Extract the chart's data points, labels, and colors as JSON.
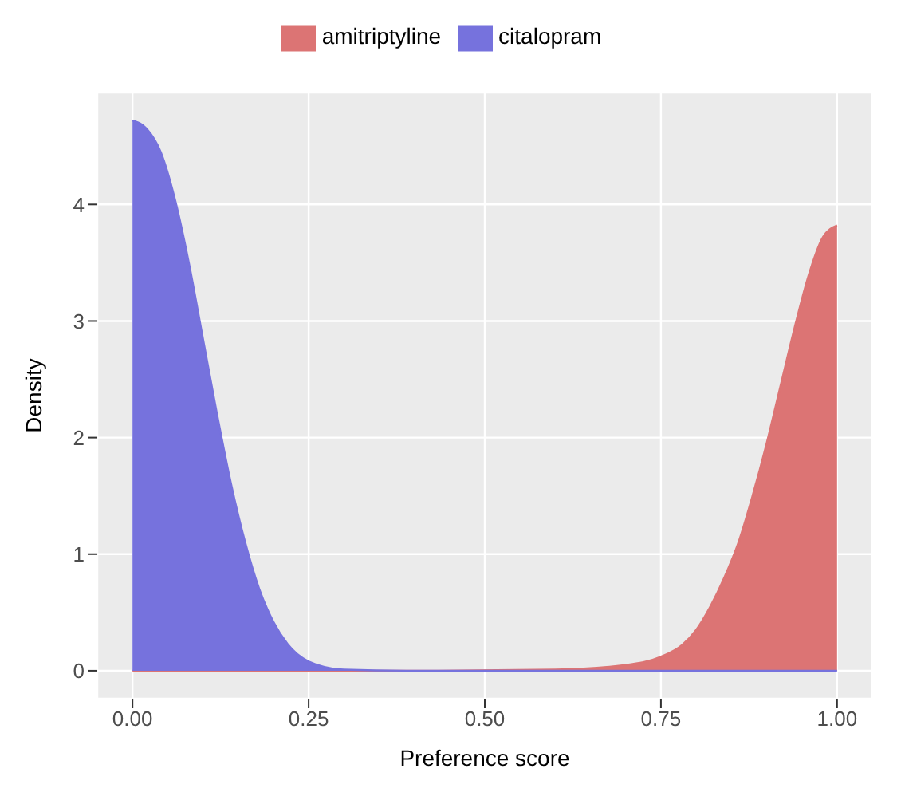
{
  "chart_data": {
    "type": "area",
    "xlabel": "Preference score",
    "ylabel": "Density",
    "xlim": [
      -0.05,
      1.05
    ],
    "ylim": [
      -0.24,
      4.96
    ],
    "xticks": [
      {
        "value": 0,
        "label": "0.00"
      },
      {
        "value": 0.25,
        "label": "0.25"
      },
      {
        "value": 0.5,
        "label": "0.50"
      },
      {
        "value": 0.75,
        "label": "0.75"
      },
      {
        "value": 1,
        "label": "1.00"
      }
    ],
    "yticks": [
      0,
      1,
      2,
      3,
      4
    ],
    "grid": true,
    "legend": "top",
    "series": [
      {
        "name": "amitriptyline",
        "color": "#dc7474",
        "x": [
          0,
          0.2,
          0.4,
          0.6,
          0.7,
          0.75,
          0.78,
          0.8,
          0.82,
          0.84,
          0.86,
          0.88,
          0.9,
          0.92,
          0.94,
          0.96,
          0.98,
          1.0
        ],
        "values": [
          0,
          0,
          0,
          0.01,
          0.05,
          0.12,
          0.22,
          0.35,
          0.55,
          0.8,
          1.1,
          1.5,
          1.95,
          2.45,
          2.95,
          3.4,
          3.72,
          3.82
        ]
      },
      {
        "name": "citalopram",
        "color": "#7672dd",
        "x": [
          0,
          0.02,
          0.04,
          0.06,
          0.08,
          0.1,
          0.12,
          0.14,
          0.16,
          0.18,
          0.2,
          0.22,
          0.25,
          0.3,
          0.4,
          0.6,
          0.8,
          1.0
        ],
        "values": [
          4.72,
          4.65,
          4.45,
          4.05,
          3.5,
          2.85,
          2.2,
          1.6,
          1.1,
          0.7,
          0.42,
          0.23,
          0.08,
          0.01,
          0,
          0,
          0,
          0
        ]
      }
    ]
  }
}
